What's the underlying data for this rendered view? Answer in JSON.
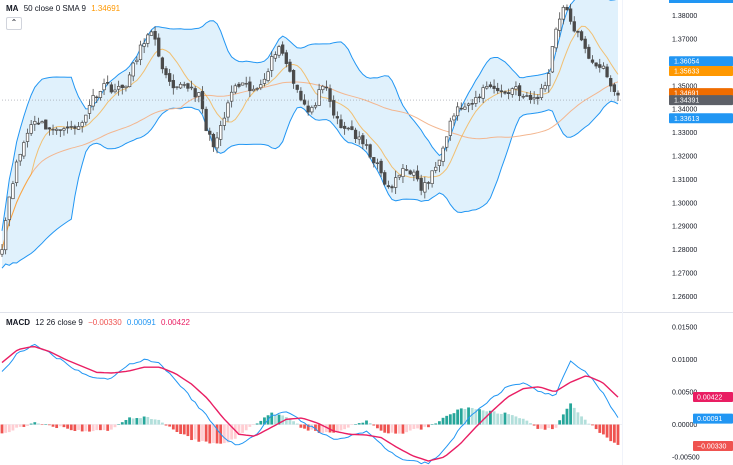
{
  "legend_main": {
    "name": "MA",
    "params": "50 close 0 SMA 9",
    "value": "1.34691"
  },
  "legend_macd": {
    "name": "MACD",
    "params": "12 26 close 9",
    "hist": "−0.00330",
    "macd": "0.00091",
    "signal": "0.00422"
  },
  "collapse_icon": "chevron-up-icon",
  "colors": {
    "up": "#26a69a",
    "down": "#ef5350",
    "candle": "#4a4a4a",
    "bb_line": "#2196f3",
    "bb_fill": "#d6ecfb",
    "ma": "#ff9800",
    "basis": "#f3b68f",
    "macd": "#2196f3",
    "signal": "#e91e63",
    "hist_up_strong": "#26a69a",
    "hist_up_weak": "#b2dfdb",
    "hist_down_strong": "#ef5350",
    "hist_down_weak": "#ffcdd2"
  },
  "chart_data": [
    {
      "type": "candlestick",
      "title": "",
      "ylim": [
        1.255,
        1.385
      ],
      "y_ticks": [
        "1.38000",
        "1.37000",
        "1.35000",
        "1.34000",
        "1.33000",
        "1.32000",
        "1.31000",
        "1.30000",
        "1.29000",
        "1.28000",
        "1.27000",
        "1.26000"
      ],
      "y_tick_values": [
        1.38,
        1.37,
        1.35,
        1.34,
        1.33,
        1.32,
        1.31,
        1.3,
        1.29,
        1.28,
        1.27,
        1.26
      ],
      "close_anchors": [
        1.282,
        1.305,
        1.318,
        1.328,
        1.336,
        1.334,
        1.332,
        1.33,
        1.334,
        1.331,
        1.333,
        1.342,
        1.347,
        1.351,
        1.349,
        1.348,
        1.353,
        1.361,
        1.37,
        1.372,
        1.362,
        1.351,
        1.347,
        1.351,
        1.349,
        1.345,
        1.329,
        1.325,
        1.334,
        1.347,
        1.35,
        1.349,
        1.347,
        1.353,
        1.36,
        1.368,
        1.36,
        1.352,
        1.344,
        1.337,
        1.346,
        1.349,
        1.338,
        1.331,
        1.333,
        1.327,
        1.324,
        1.319,
        1.312,
        1.305,
        1.31,
        1.316,
        1.313,
        1.306,
        1.309,
        1.316,
        1.327,
        1.337,
        1.341,
        1.34,
        1.344,
        1.349,
        1.351,
        1.347,
        1.347,
        1.35,
        1.345,
        1.344,
        1.346,
        1.352,
        1.373,
        1.384,
        1.378,
        1.371,
        1.364,
        1.36,
        1.358,
        1.35,
        1.346
      ],
      "series": [
        {
          "name": "MA",
          "value": 1.34691
        },
        {
          "name": "",
          "value": 1.36054
        },
        {
          "name": "",
          "value": 1.35633
        },
        {
          "name": "",
          "value": 1.34391
        },
        {
          "name": "",
          "value": 1.33613
        }
      ],
      "price_badges": [
        {
          "label": "1.36054",
          "value": 1.36054,
          "color": "#2196f3"
        },
        {
          "label": "1.35633",
          "value": 1.35633,
          "color": "#ff9800"
        },
        {
          "label": "1.34691",
          "value": 1.34691,
          "color": "#ef6c00"
        },
        {
          "label": "1.34391",
          "value": 1.34391,
          "color": "#5d6068"
        },
        {
          "label": "1.33613",
          "value": 1.33613,
          "color": "#2196f3"
        }
      ]
    },
    {
      "type": "line",
      "title": "MACD 12 26 close 9",
      "ylim": [
        -0.0056,
        0.0165
      ],
      "y_ticks": [
        "0.01500",
        "0.01000",
        "0.00500",
        "0.00000",
        "-0.00500"
      ],
      "y_tick_values": [
        0.015,
        0.01,
        0.005,
        0.0,
        -0.005
      ],
      "macd_anchors": [
        0.008,
        0.011,
        0.0122,
        0.011,
        0.0095,
        0.008,
        0.007,
        0.0072,
        0.0092,
        0.01,
        0.0094,
        0.0068,
        0.004,
        0.0012,
        -0.002,
        -0.0032,
        -0.0018,
        0.0014,
        0.002,
        0.0005,
        -0.001,
        -0.0023,
        -0.0018,
        -0.001,
        -0.003,
        -0.005,
        -0.0057,
        -0.006,
        -0.004,
        -0.0005,
        0.002,
        0.004,
        0.0058,
        0.0062,
        0.0052,
        0.0042,
        0.0098,
        0.008,
        0.005,
        0.0009
      ],
      "signal_anchors": [
        0.0095,
        0.0115,
        0.012,
        0.0112,
        0.01,
        0.009,
        0.008,
        0.0079,
        0.0082,
        0.0088,
        0.0088,
        0.0078,
        0.0062,
        0.004,
        0.001,
        -0.0015,
        -0.0018,
        -0.0005,
        0.0008,
        0.001,
        0.0002,
        -0.001,
        -0.0015,
        -0.0016,
        -0.002,
        -0.0035,
        -0.0048,
        -0.0056,
        -0.005,
        -0.003,
        -0.0004,
        0.002,
        0.0042,
        0.0055,
        0.0058,
        0.005,
        0.0065,
        0.0075,
        0.0065,
        0.0042
      ],
      "series": [
        {
          "name": "MACD",
          "value": 0.00091
        },
        {
          "name": "",
          "value": 0.00422
        },
        {
          "name": "",
          "value": -0.0033
        }
      ],
      "price_badges": [
        {
          "label": "0.00422",
          "value": 0.00422,
          "color": "#e91e63"
        },
        {
          "label": "0.00091",
          "value": 0.00091,
          "color": "#2196f3"
        },
        {
          "label": "−0.00330",
          "value": -0.0033,
          "color": "#ef5350"
        }
      ]
    }
  ]
}
